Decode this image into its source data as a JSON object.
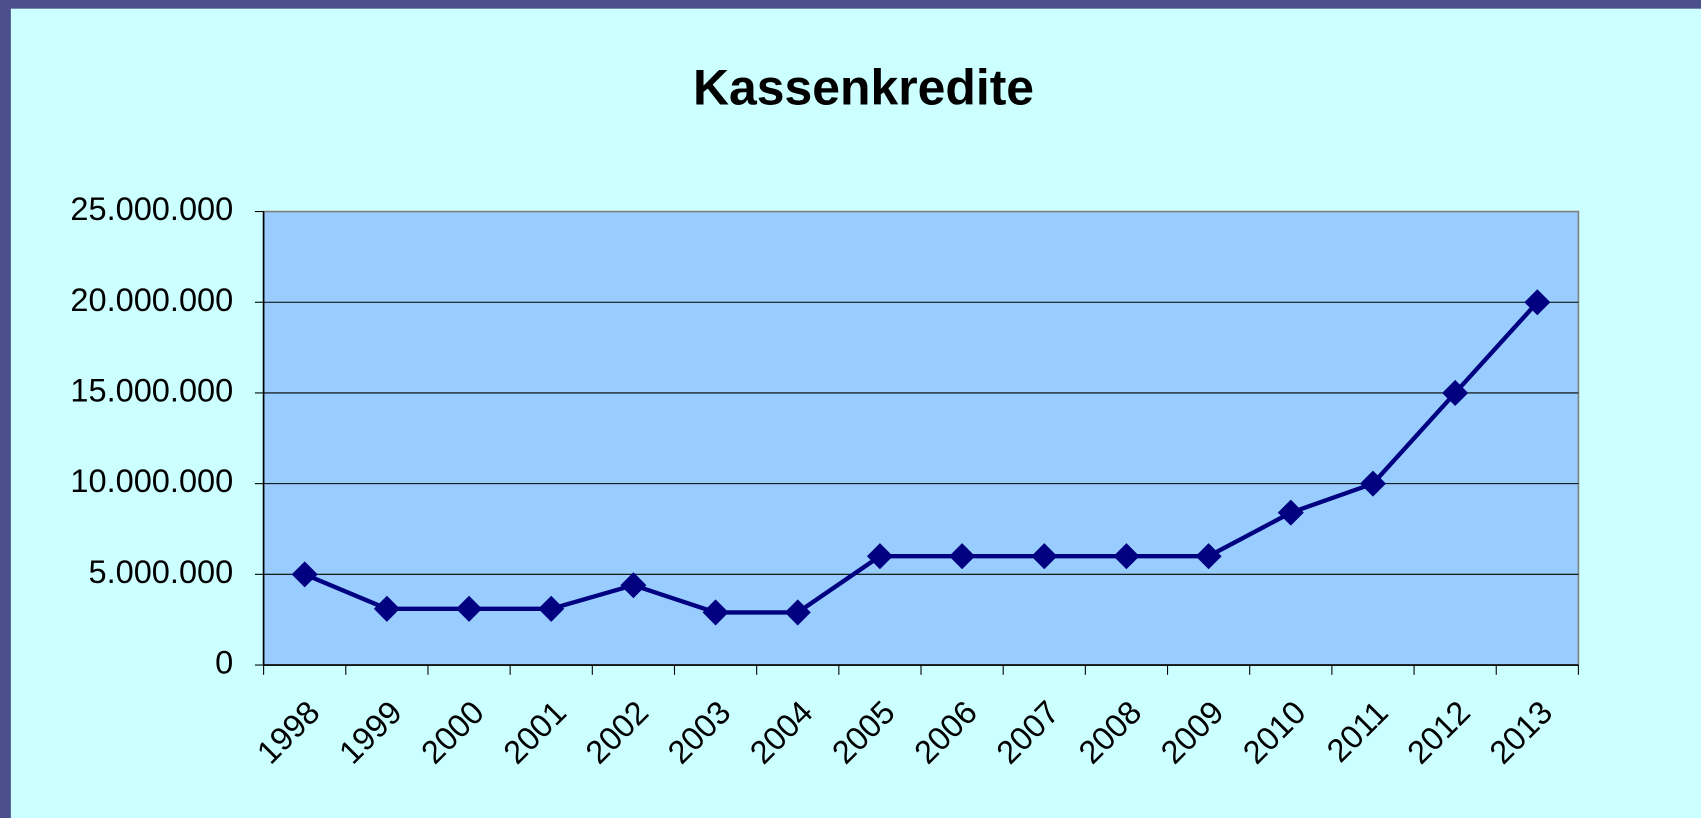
{
  "chart_data": {
    "type": "line",
    "title": "Kassenkredite",
    "categories": [
      "1998",
      "1999",
      "2000",
      "2001",
      "2002",
      "2003",
      "2004",
      "2005",
      "2006",
      "2007",
      "2008",
      "2009",
      "2010",
      "2011",
      "2012",
      "2013"
    ],
    "series": [
      {
        "name": "Kassenkredite",
        "color": "#000080",
        "values": [
          5000000,
          3100000,
          3100000,
          3100000,
          4400000,
          2900000,
          2900000,
          6000000,
          6000000,
          6000000,
          6000000,
          6000000,
          8400000,
          10000000,
          15000000,
          20000000
        ]
      }
    ],
    "ylim": [
      0,
      25000000
    ],
    "yticks": [
      0,
      {
        "value": 5000000,
        "label": "5.000.000"
      },
      {
        "value": 10000000,
        "label": "10.000.000"
      },
      {
        "value": 15000000,
        "label": "15.000.000"
      },
      {
        "value": 20000000,
        "label": "20.000.000"
      },
      {
        "value": 25000000,
        "label": "25.000.000"
      }
    ],
    "grid": true
  }
}
